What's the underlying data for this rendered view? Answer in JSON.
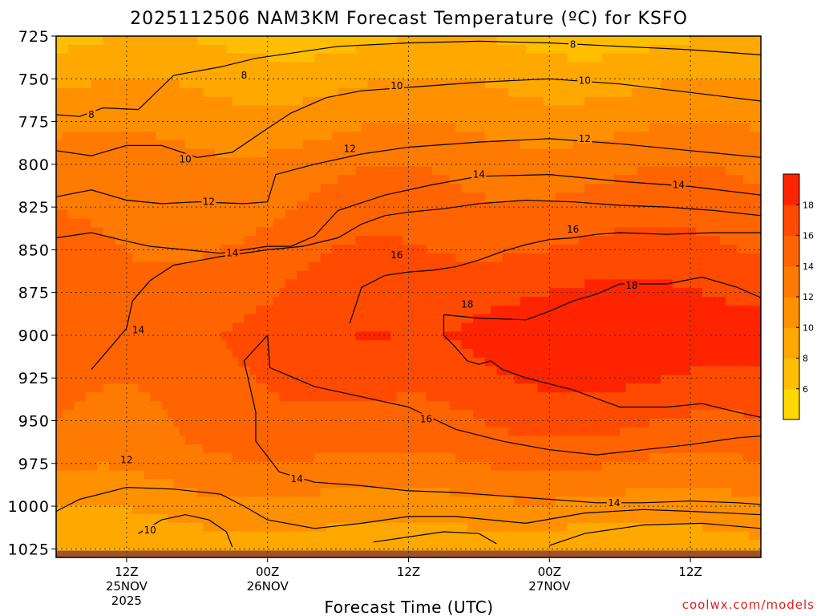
{
  "title": "2025112506 NAM3KM Forecast Temperature (ºC) for KSFO",
  "credit": "coolwx.com/models",
  "chart_data": {
    "type": "heatmap",
    "title": "2025112506 NAM3KM Forecast Temperature (ºC) for KSFO",
    "xlabel": "Forecast Time (UTC)",
    "ylabel": "",
    "xlim_hours": [
      0,
      60
    ],
    "ylim": [
      1030,
      725
    ],
    "y_ticks": [
      725,
      750,
      775,
      800,
      825,
      850,
      875,
      900,
      925,
      950,
      975,
      1000,
      1025
    ],
    "x_ticks": [
      {
        "hour": 6,
        "lines": [
          "12Z",
          "25NOV",
          "2025"
        ]
      },
      {
        "hour": 18,
        "lines": [
          "00Z",
          "26NOV"
        ]
      },
      {
        "hour": 30,
        "lines": [
          "12Z"
        ]
      },
      {
        "hour": 42,
        "lines": [
          "00Z",
          "27NOV"
        ]
      },
      {
        "hour": 54,
        "lines": [
          "12Z"
        ]
      }
    ],
    "grid": true,
    "colorbar": {
      "levels": [
        4,
        6,
        8,
        10,
        12,
        14,
        16,
        18,
        20
      ],
      "tick_labels": [
        "6",
        "8",
        "10",
        "12",
        "14",
        "16",
        "18"
      ],
      "colors": [
        "#ffd800",
        "#ffbe00",
        "#ffa800",
        "#ff9000",
        "#ff7a00",
        "#ff6400",
        "#ff4a00",
        "#ff2400"
      ]
    },
    "ground_color": "#a0522d",
    "isotherms": [
      {
        "value": 8,
        "points": [
          [
            0,
            771
          ],
          [
            2,
            772
          ],
          [
            4,
            767
          ],
          [
            7,
            768
          ],
          [
            10,
            748
          ],
          [
            14,
            743
          ],
          [
            17,
            738
          ],
          [
            20,
            735
          ],
          [
            24,
            731
          ],
          [
            30,
            729
          ],
          [
            36,
            728
          ],
          [
            42,
            729
          ],
          [
            48,
            731
          ],
          [
            54,
            733
          ],
          [
            60,
            736
          ]
        ]
      },
      {
        "value": 10,
        "points": [
          [
            0,
            792
          ],
          [
            3,
            795
          ],
          [
            6,
            789
          ],
          [
            9,
            789
          ],
          [
            12,
            796
          ],
          [
            15,
            793
          ],
          [
            18,
            779
          ],
          [
            20,
            770
          ],
          [
            23,
            761
          ],
          [
            26,
            757
          ],
          [
            30,
            755
          ],
          [
            36,
            752
          ],
          [
            42,
            750
          ],
          [
            48,
            753
          ],
          [
            54,
            758
          ],
          [
            60,
            763
          ]
        ]
      },
      {
        "value": 12,
        "points": [
          [
            0,
            819
          ],
          [
            3,
            815
          ],
          [
            6,
            821
          ],
          [
            9,
            823
          ],
          [
            12,
            822
          ],
          [
            16,
            823
          ],
          [
            18,
            822
          ],
          [
            18.7,
            806
          ],
          [
            22,
            800
          ],
          [
            26,
            794
          ],
          [
            30,
            790
          ],
          [
            36,
            787
          ],
          [
            42,
            785
          ],
          [
            48,
            788
          ],
          [
            54,
            792
          ],
          [
            60,
            796
          ]
        ]
      },
      {
        "value": 14,
        "points": [
          [
            0,
            843
          ],
          [
            3,
            840
          ],
          [
            6,
            845
          ],
          [
            8,
            848
          ],
          [
            11,
            850
          ],
          [
            14,
            852
          ],
          [
            18,
            848
          ],
          [
            20,
            848
          ],
          [
            22,
            842
          ],
          [
            24,
            827
          ],
          [
            28,
            818
          ],
          [
            32,
            812
          ],
          [
            36,
            807
          ],
          [
            42,
            806
          ],
          [
            48,
            810
          ],
          [
            54,
            813
          ],
          [
            60,
            818
          ]
        ]
      },
      {
        "value": 14,
        "points": [
          [
            3,
            920
          ],
          [
            6,
            896
          ],
          [
            6.5,
            880
          ],
          [
            8,
            868
          ],
          [
            10,
            859
          ],
          [
            14,
            854
          ],
          [
            18,
            850
          ],
          [
            21,
            848
          ],
          [
            24,
            843
          ],
          [
            26,
            835
          ],
          [
            28,
            830
          ],
          [
            30,
            828
          ],
          [
            33,
            826
          ],
          [
            36,
            823
          ],
          [
            40,
            821
          ],
          [
            44,
            822
          ],
          [
            48,
            824
          ],
          [
            52,
            825
          ],
          [
            56,
            827
          ],
          [
            60,
            830
          ]
        ]
      },
      {
        "value": 16,
        "points": [
          [
            25,
            893
          ],
          [
            26,
            872
          ],
          [
            28,
            865
          ],
          [
            30,
            863
          ],
          [
            32,
            862
          ],
          [
            34,
            860
          ],
          [
            36,
            856
          ],
          [
            38,
            851
          ],
          [
            40,
            847
          ],
          [
            42,
            844
          ],
          [
            44,
            843
          ],
          [
            46,
            841
          ],
          [
            48,
            840
          ],
          [
            52,
            841
          ],
          [
            56,
            840
          ],
          [
            60,
            840
          ]
        ]
      },
      {
        "value": 18,
        "points": [
          [
            33,
            888
          ],
          [
            36,
            890
          ],
          [
            40,
            891
          ],
          [
            42,
            886
          ],
          [
            44,
            880
          ],
          [
            46,
            876
          ],
          [
            48,
            870
          ],
          [
            52,
            870
          ],
          [
            55,
            866
          ],
          [
            58,
            872
          ],
          [
            60,
            878
          ],
          [
            60,
            948
          ],
          [
            58,
            945
          ],
          [
            55,
            940
          ],
          [
            52,
            942
          ],
          [
            48,
            942
          ],
          [
            44,
            932
          ],
          [
            40,
            925
          ],
          [
            38,
            920
          ],
          [
            37,
            915
          ],
          [
            36,
            917
          ],
          [
            35,
            915
          ],
          [
            34,
            907
          ],
          [
            33,
            900
          ],
          [
            33,
            888
          ]
        ]
      },
      {
        "value": 16,
        "points": [
          [
            18,
            900
          ],
          [
            18.2,
            919
          ],
          [
            22,
            930
          ],
          [
            26,
            936
          ],
          [
            30,
            942
          ],
          [
            34,
            955
          ],
          [
            38,
            962
          ],
          [
            42,
            967
          ],
          [
            46,
            970
          ],
          [
            50,
            967
          ],
          [
            54,
            964
          ],
          [
            58,
            960
          ],
          [
            60,
            959
          ]
        ]
      },
      {
        "value": 14,
        "points": [
          [
            18,
            900
          ],
          [
            16,
            915
          ],
          [
            17,
            945
          ],
          [
            17,
            962
          ],
          [
            19,
            980
          ],
          [
            22,
            986
          ],
          [
            26,
            988
          ],
          [
            30,
            991
          ],
          [
            34,
            992
          ],
          [
            40,
            995
          ],
          [
            46,
            998
          ],
          [
            50,
            998
          ],
          [
            54,
            997
          ],
          [
            58,
            998
          ],
          [
            60,
            999
          ]
        ]
      },
      {
        "value": 12,
        "points": [
          [
            0,
            1003
          ],
          [
            2,
            996
          ],
          [
            6,
            989
          ],
          [
            10,
            990
          ],
          [
            14,
            993
          ],
          [
            16,
            1000
          ],
          [
            18,
            1008
          ],
          [
            22,
            1013
          ],
          [
            26,
            1010
          ],
          [
            30,
            1006
          ],
          [
            34,
            1006
          ],
          [
            40,
            1010
          ],
          [
            45,
            1004
          ],
          [
            50,
            1002
          ],
          [
            54,
            1003
          ],
          [
            60,
            1005
          ]
        ]
      },
      {
        "value": 10,
        "points": [
          [
            7,
            1016
          ],
          [
            9,
            1008
          ],
          [
            11,
            1005
          ],
          [
            13,
            1008
          ],
          [
            14.5,
            1015
          ],
          [
            15,
            1024
          ]
        ]
      },
      {
        "value": 10,
        "points": [
          [
            27,
            1021
          ],
          [
            30,
            1018
          ],
          [
            33,
            1015
          ],
          [
            36,
            1016
          ],
          [
            37.5,
            1022
          ]
        ]
      },
      {
        "value": 10,
        "points": [
          [
            42,
            1023
          ],
          [
            45,
            1016
          ],
          [
            50,
            1011
          ],
          [
            55,
            1010
          ],
          [
            60,
            1013
          ]
        ]
      }
    ],
    "isotherm_labels": [
      {
        "value": 8,
        "hour": 3,
        "p": 771
      },
      {
        "value": 8,
        "hour": 16,
        "p": 748
      },
      {
        "value": 8,
        "hour": 44,
        "p": 730
      },
      {
        "value": 10,
        "hour": 11,
        "p": 797
      },
      {
        "value": 10,
        "hour": 29,
        "p": 754
      },
      {
        "value": 10,
        "hour": 45,
        "p": 751
      },
      {
        "value": 12,
        "hour": 13,
        "p": 822
      },
      {
        "value": 12,
        "hour": 25,
        "p": 791
      },
      {
        "value": 12,
        "hour": 45,
        "p": 785
      },
      {
        "value": 14,
        "hour": 15,
        "p": 852
      },
      {
        "value": 14,
        "hour": 36,
        "p": 806
      },
      {
        "value": 14,
        "hour": 53,
        "p": 812
      },
      {
        "value": 14,
        "hour": 7,
        "p": 897
      },
      {
        "value": 14,
        "hour": 20.5,
        "p": 984
      },
      {
        "value": 14,
        "hour": 47.5,
        "p": 998
      },
      {
        "value": 16,
        "hour": 29,
        "p": 853
      },
      {
        "value": 16,
        "hour": 44,
        "p": 838
      },
      {
        "value": 16,
        "hour": 31.5,
        "p": 949
      },
      {
        "value": 18,
        "hour": 35,
        "p": 882
      },
      {
        "value": 18,
        "hour": 49,
        "p": 871
      },
      {
        "value": 12,
        "hour": 6,
        "p": 973
      },
      {
        "value": 10,
        "hour": 8,
        "p": 1014
      }
    ]
  }
}
